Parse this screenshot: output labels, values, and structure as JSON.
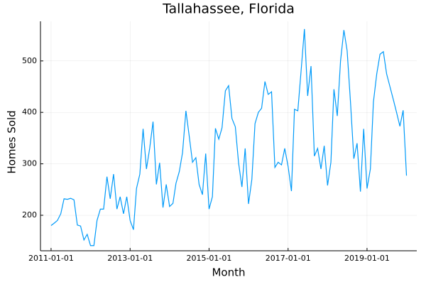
{
  "chart_data": {
    "type": "line",
    "title": "Tallahassee, Florida",
    "x_label": "Month",
    "y_label": "Homes Sold",
    "x": [
      "2011-01-01",
      "2011-02-01",
      "2011-03-01",
      "2011-04-01",
      "2011-05-01",
      "2011-06-01",
      "2011-07-01",
      "2011-08-01",
      "2011-09-01",
      "2011-10-01",
      "2011-11-01",
      "2011-12-01",
      "2012-01-01",
      "2012-02-01",
      "2012-03-01",
      "2012-04-01",
      "2012-05-01",
      "2012-06-01",
      "2012-07-01",
      "2012-08-01",
      "2012-09-01",
      "2012-10-01",
      "2012-11-01",
      "2012-12-01",
      "2013-01-01",
      "2013-02-01",
      "2013-03-01",
      "2013-04-01",
      "2013-05-01",
      "2013-06-01",
      "2013-07-01",
      "2013-08-01",
      "2013-09-01",
      "2013-10-01",
      "2013-11-01",
      "2013-12-01",
      "2014-01-01",
      "2014-02-01",
      "2014-03-01",
      "2014-04-01",
      "2014-05-01",
      "2014-06-01",
      "2014-07-01",
      "2014-08-01",
      "2014-09-01",
      "2014-10-01",
      "2014-11-01",
      "2014-12-01",
      "2015-01-01",
      "2015-02-01",
      "2015-03-01",
      "2015-04-01",
      "2015-05-01",
      "2015-06-01",
      "2015-07-01",
      "2015-08-01",
      "2015-09-01",
      "2015-10-01",
      "2015-11-01",
      "2015-12-01",
      "2016-01-01",
      "2016-02-01",
      "2016-03-01",
      "2016-04-01",
      "2016-05-01",
      "2016-06-01",
      "2016-07-01",
      "2016-08-01",
      "2016-09-01",
      "2016-10-01",
      "2016-11-01",
      "2016-12-01",
      "2017-01-01",
      "2017-02-01",
      "2017-03-01",
      "2017-04-01",
      "2017-05-01",
      "2017-06-01",
      "2017-07-01",
      "2017-08-01",
      "2017-09-01",
      "2017-10-01",
      "2017-11-01",
      "2017-12-01",
      "2018-01-01",
      "2018-02-01",
      "2018-03-01",
      "2018-04-01",
      "2018-05-01",
      "2018-06-01",
      "2018-07-01",
      "2018-08-01",
      "2018-09-01",
      "2018-10-01",
      "2018-11-01",
      "2018-12-01",
      "2019-01-01",
      "2019-02-01",
      "2019-03-01",
      "2019-04-01",
      "2019-05-01",
      "2019-06-01",
      "2019-07-01",
      "2019-08-01",
      "2019-09-01",
      "2019-10-01",
      "2019-11-01",
      "2019-12-01",
      "2020-01-01"
    ],
    "series": [
      {
        "color": "#009af9",
        "values": [
          180,
          185,
          190,
          203,
          232,
          231,
          233,
          230,
          181,
          179,
          152,
          163,
          141,
          141,
          190,
          212,
          212,
          275,
          232,
          280,
          212,
          236,
          203,
          236,
          190,
          172,
          252,
          280,
          368,
          290,
          330,
          382,
          260,
          302,
          215,
          260,
          217,
          223,
          262,
          285,
          322,
          403,
          355,
          303,
          312,
          260,
          240,
          320,
          212,
          236,
          369,
          348,
          370,
          442,
          452,
          388,
          372,
          302,
          255,
          330,
          222,
          270,
          378,
          400,
          408,
          460,
          435,
          440,
          293,
          303,
          298,
          330,
          295,
          247,
          406,
          403,
          480,
          562,
          432,
          490,
          315,
          330,
          290,
          335,
          258,
          303,
          445,
          393,
          500,
          560,
          520,
          420,
          310,
          340,
          246,
          368,
          252,
          290,
          420,
          475,
          513,
          518,
          475,
          450,
          425,
          400,
          373,
          404,
          277
        ]
      }
    ],
    "xlim": [
      "2010-09-25",
      "2020-04-05"
    ],
    "xticks": [
      "2011-01-01",
      "2013-01-01",
      "2015-01-01",
      "2017-01-01",
      "2019-01-01"
    ],
    "ylim": [
      131,
      577
    ],
    "yticks": [
      200,
      300,
      400,
      500
    ],
    "grid": true
  }
}
